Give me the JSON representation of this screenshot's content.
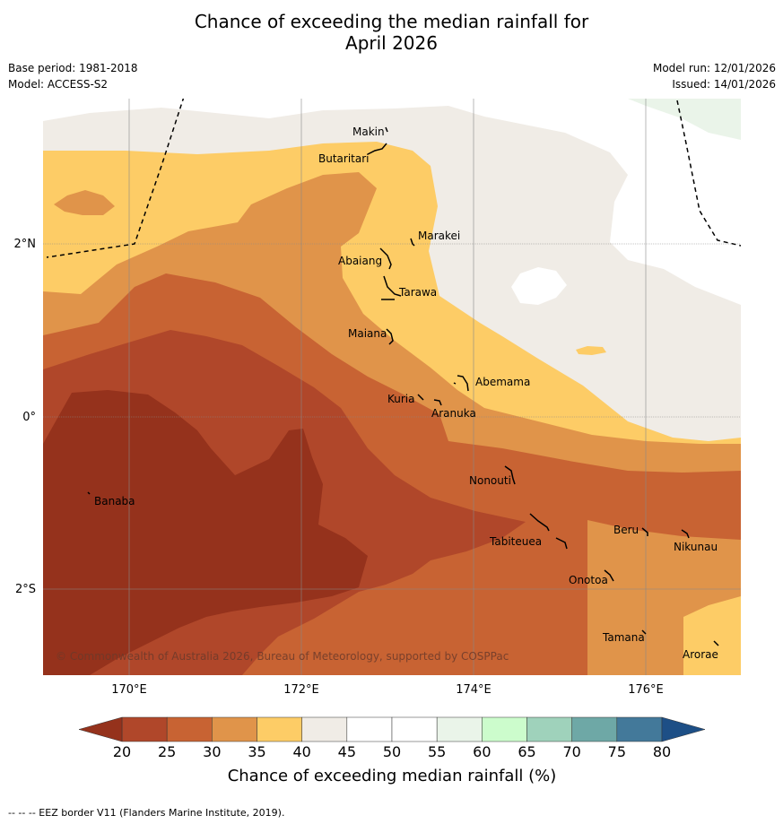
{
  "title_line1": "Chance of exceeding the median rainfall for",
  "title_line2": "April 2026",
  "left_meta": [
    "Base period: 1981-2018",
    "Model: ACCESS-S2"
  ],
  "right_meta": [
    "Model run: 12/01/2026",
    "Issued: 14/01/2026"
  ],
  "x_ticks": [
    "170°E",
    "172°E",
    "174°E",
    "176°E"
  ],
  "y_ticks": [
    "2°N",
    "0°",
    "2°S"
  ],
  "copyright": "© Commonwealth of Australia 2026, Bureau of Meteorology, supported by COSPPac",
  "places": [
    "Makin",
    "Butaritari",
    "Marakei",
    "Abaiang",
    "Tarawa",
    "Maiana",
    "Abemama",
    "Kuria",
    "Aranuka",
    "Nonouti",
    "Banaba",
    "Tabiteuea",
    "Beru",
    "Nikunau",
    "Onotoa",
    "Tamana",
    "Arorae"
  ],
  "colorbar": {
    "ticks": [
      "20",
      "25",
      "30",
      "35",
      "40",
      "45",
      "50",
      "55",
      "60",
      "65",
      "70",
      "75",
      "80"
    ],
    "under_color": "#95321c",
    "over_color": "#1d4f86",
    "colors": [
      "#b0472a",
      "#c86333",
      "#e0944a",
      "#fdcc66",
      "#f0ece6",
      "#ffffff",
      "#ffffff",
      "#eaf4e9",
      "#ccfccc",
      "#9fd2bb",
      "#6ea8a6",
      "#43799a"
    ],
    "title": "Chance of exceeding median rainfall (%)"
  },
  "footnote": "--  --  -- EEZ border V11 (Flanders Marine Institute, 2019)."
}
